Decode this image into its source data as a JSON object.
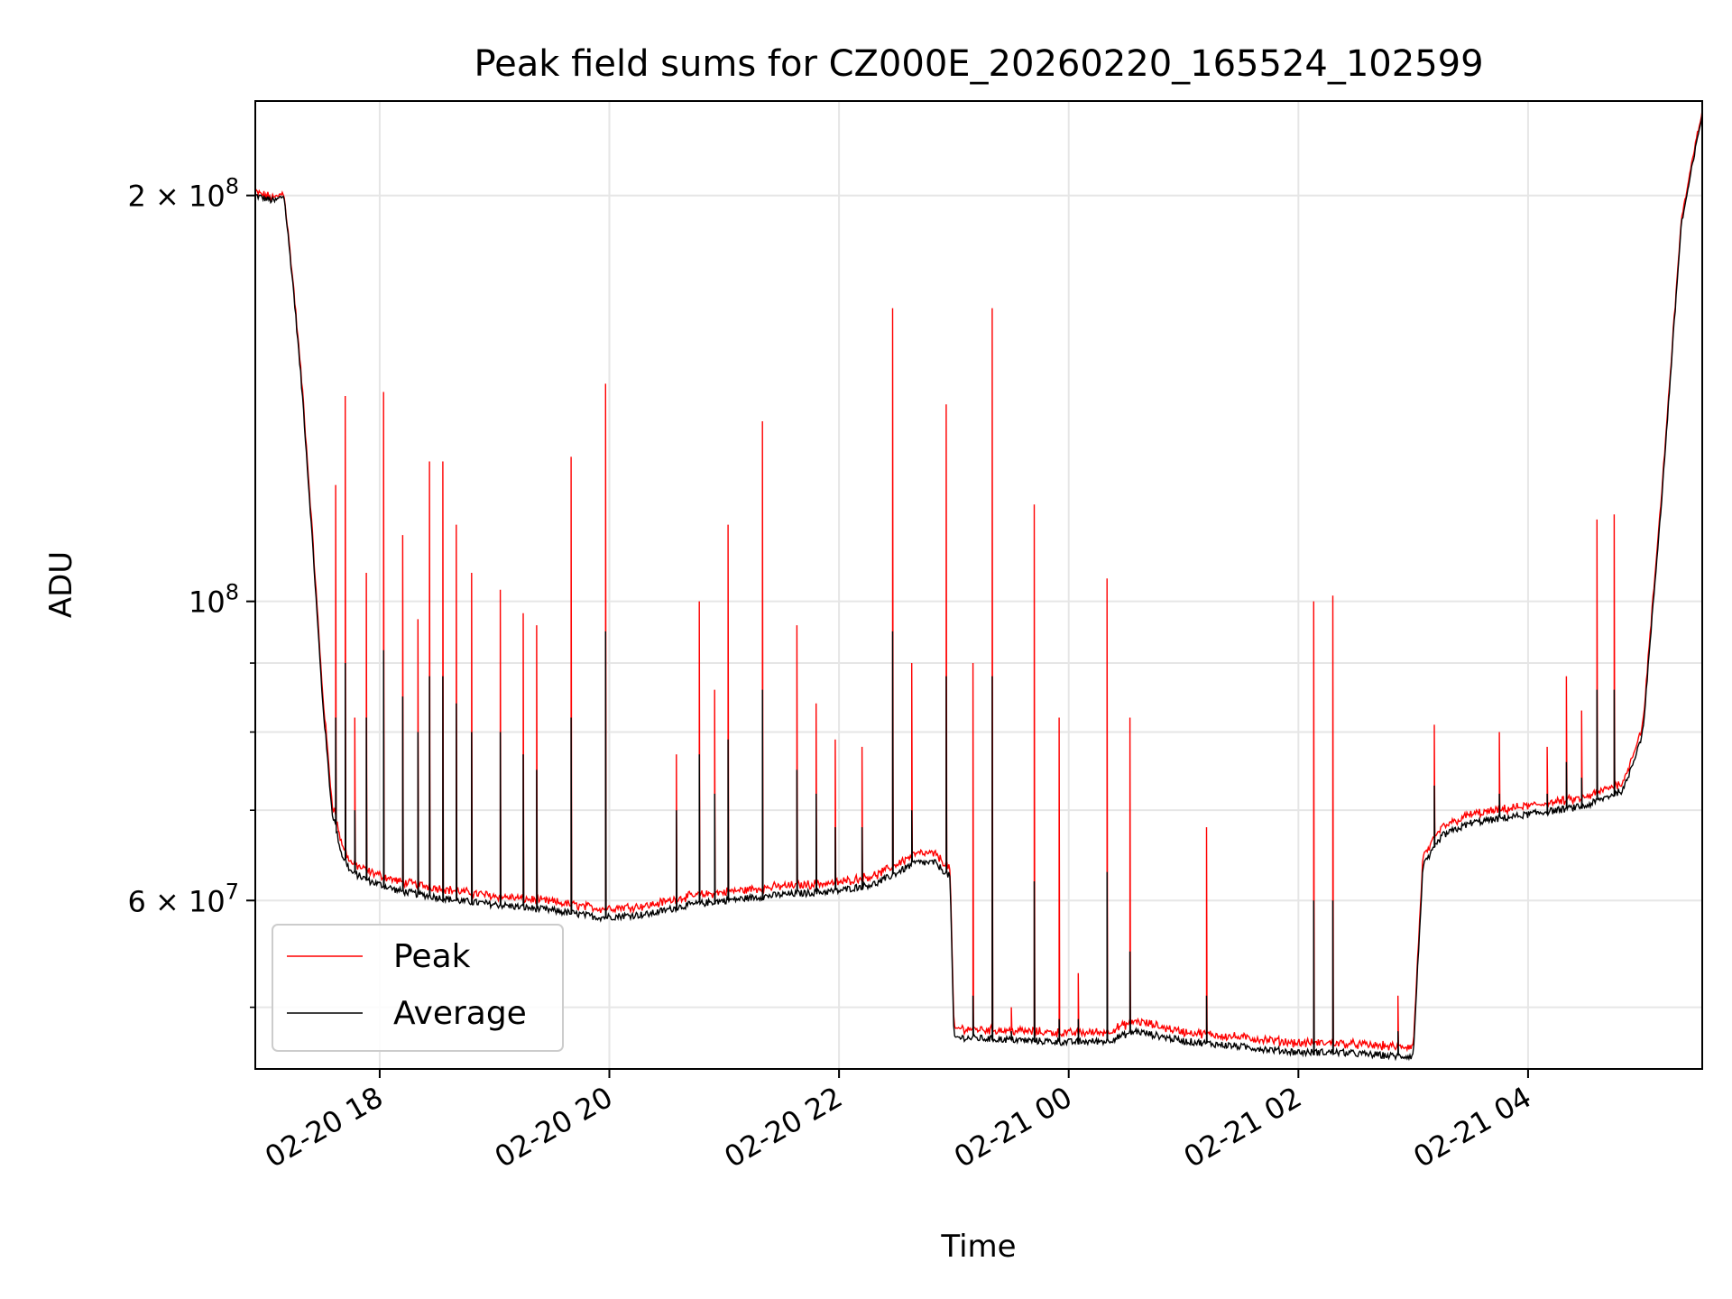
{
  "chart_data": {
    "type": "line",
    "title": "Peak field sums for CZ000E_20260220_165524_102599",
    "xlabel": "Time",
    "ylabel": "ADU",
    "x_range": [
      "2026-02-20 16:55",
      "2026-02-21 05:31"
    ],
    "y_scale": "log",
    "ylim": [
      45000000,
      235000000
    ],
    "grid": true,
    "legend_position": "lower-left",
    "x_ticks": [
      {
        "x": "2026-02-20 18:00",
        "label": "02-20 18"
      },
      {
        "x": "2026-02-20 20:00",
        "label": "02-20 20"
      },
      {
        "x": "2026-02-20 22:00",
        "label": "02-20 22"
      },
      {
        "x": "2026-02-21 00:00",
        "label": "02-21 00"
      },
      {
        "x": "2026-02-21 02:00",
        "label": "02-21 02"
      },
      {
        "x": "2026-02-21 04:00",
        "label": "02-21 04"
      }
    ],
    "y_ticks_major": [
      {
        "y": 60000000,
        "base": "6 × 10",
        "exp": "7"
      },
      {
        "y": 100000000,
        "base": "10",
        "exp": "8"
      },
      {
        "y": 200000000,
        "base": "2 × 10",
        "exp": "8"
      }
    ],
    "y_ticks_minor": [
      50000000,
      70000000,
      80000000,
      90000000
    ],
    "baseline": {
      "x": [
        "2026-02-20 16:55",
        "2026-02-20 17:05",
        "2026-02-20 17:10",
        "2026-02-20 17:15",
        "2026-02-20 17:20",
        "2026-02-20 17:25",
        "2026-02-20 17:30",
        "2026-02-20 17:35",
        "2026-02-20 17:40",
        "2026-02-20 17:45",
        "2026-02-20 17:55",
        "2026-02-20 18:10",
        "2026-02-20 18:40",
        "2026-02-20 19:00",
        "2026-02-20 19:30",
        "2026-02-20 19:55",
        "2026-02-20 20:20",
        "2026-02-20 20:40",
        "2026-02-20 21:00",
        "2026-02-20 21:30",
        "2026-02-20 22:00",
        "2026-02-20 22:20",
        "2026-02-20 22:40",
        "2026-02-20 22:50",
        "2026-02-20 22:58",
        "2026-02-20 23:00",
        "2026-02-20 23:30",
        "2026-02-21 00:00",
        "2026-02-21 00:20",
        "2026-02-21 00:35",
        "2026-02-21 01:00",
        "2026-02-21 01:40",
        "2026-02-21 02:00",
        "2026-02-21 02:20",
        "2026-02-21 02:50",
        "2026-02-21 03:00",
        "2026-02-21 03:05",
        "2026-02-21 03:15",
        "2026-02-21 03:30",
        "2026-02-21 04:00",
        "2026-02-21 04:30",
        "2026-02-21 04:50",
        "2026-02-21 05:00",
        "2026-02-21 05:10",
        "2026-02-21 05:20",
        "2026-02-21 05:31"
      ],
      "average": [
        200000000,
        198000000,
        200000000,
        170000000,
        140000000,
        110000000,
        85000000,
        70000000,
        65000000,
        63000000,
        62000000,
        61000000,
        60000000,
        59600000,
        59000000,
        58300000,
        58600000,
        59500000,
        60000000,
        60600000,
        61000000,
        61800000,
        64000000,
        64000000,
        62500000,
        47500000,
        47300000,
        47100000,
        47200000,
        48000000,
        47200000,
        46600000,
        46300000,
        46300000,
        46000000,
        46000000,
        63500000,
        67000000,
        68500000,
        69500000,
        70500000,
        72500000,
        80000000,
        120000000,
        190000000,
        230000000
      ],
      "peak": [
        200500000,
        198500000,
        200500000,
        170500000,
        141000000,
        111000000,
        86000000,
        71000000,
        66000000,
        63800000,
        62800000,
        61800000,
        60800000,
        60300000,
        59700000,
        59000000,
        59300000,
        60200000,
        60700000,
        61300000,
        61700000,
        62500000,
        64800000,
        64800000,
        63200000,
        48100000,
        47900000,
        47700000,
        47800000,
        48700000,
        47800000,
        47200000,
        46900000,
        46900000,
        46600000,
        46600000,
        64300000,
        67800000,
        69300000,
        70300000,
        71300000,
        73300000,
        80800000,
        121000000,
        191000000,
        231000000
      ]
    },
    "spikes": {
      "x": [
        "2026-02-20 17:37",
        "2026-02-20 17:42",
        "2026-02-20 17:47",
        "2026-02-20 17:53",
        "2026-02-20 18:02",
        "2026-02-20 18:12",
        "2026-02-20 18:20",
        "2026-02-20 18:26",
        "2026-02-20 18:33",
        "2026-02-20 18:40",
        "2026-02-20 18:48",
        "2026-02-20 19:03",
        "2026-02-20 19:15",
        "2026-02-20 19:22",
        "2026-02-20 19:40",
        "2026-02-20 19:58",
        "2026-02-20 20:35",
        "2026-02-20 20:47",
        "2026-02-20 20:55",
        "2026-02-20 21:02",
        "2026-02-20 21:20",
        "2026-02-20 21:38",
        "2026-02-20 21:48",
        "2026-02-20 21:58",
        "2026-02-20 22:12",
        "2026-02-20 22:28",
        "2026-02-20 22:38",
        "2026-02-20 22:56",
        "2026-02-20 23:10",
        "2026-02-20 23:20",
        "2026-02-20 23:30",
        "2026-02-20 23:42",
        "2026-02-20 23:55",
        "2026-02-21 00:05",
        "2026-02-21 00:20",
        "2026-02-21 00:32",
        "2026-02-21 01:12",
        "2026-02-21 02:08",
        "2026-02-21 02:18",
        "2026-02-21 02:52",
        "2026-02-21 03:11",
        "2026-02-21 03:45",
        "2026-02-21 04:10",
        "2026-02-21 04:20",
        "2026-02-21 04:28",
        "2026-02-21 04:36",
        "2026-02-21 04:45"
      ],
      "peak": [
        122000000,
        142000000,
        82000000,
        105000000,
        143000000,
        112000000,
        97000000,
        127000000,
        127000000,
        114000000,
        105000000,
        102000000,
        98000000,
        96000000,
        128000000,
        145000000,
        77000000,
        100000000,
        86000000,
        114000000,
        136000000,
        96000000,
        84000000,
        79000000,
        78000000,
        165000000,
        90000000,
        140000000,
        90000000,
        165000000,
        50000000,
        118000000,
        82000000,
        53000000,
        104000000,
        82000000,
        68000000,
        100000000,
        101000000,
        51000000,
        81000000,
        80000000,
        78000000,
        88000000,
        83000000,
        115000000,
        116000000
      ],
      "average": [
        82000000,
        90000000,
        70000000,
        82000000,
        92000000,
        85000000,
        80000000,
        88000000,
        88000000,
        84000000,
        80000000,
        80000000,
        77000000,
        75000000,
        82000000,
        95000000,
        70000000,
        77000000,
        72000000,
        79000000,
        86000000,
        75000000,
        72000000,
        68000000,
        68000000,
        95000000,
        70000000,
        88000000,
        51000000,
        88000000,
        48000000,
        62000000,
        49000000,
        49000000,
        63000000,
        55000000,
        51000000,
        60000000,
        60000000,
        48000000,
        73000000,
        72000000,
        72000000,
        76000000,
        74000000,
        86000000,
        86000000
      ]
    },
    "series": [
      {
        "name": "Peak",
        "color": "#ff0000"
      },
      {
        "name": "Average",
        "color": "#000000"
      }
    ]
  }
}
